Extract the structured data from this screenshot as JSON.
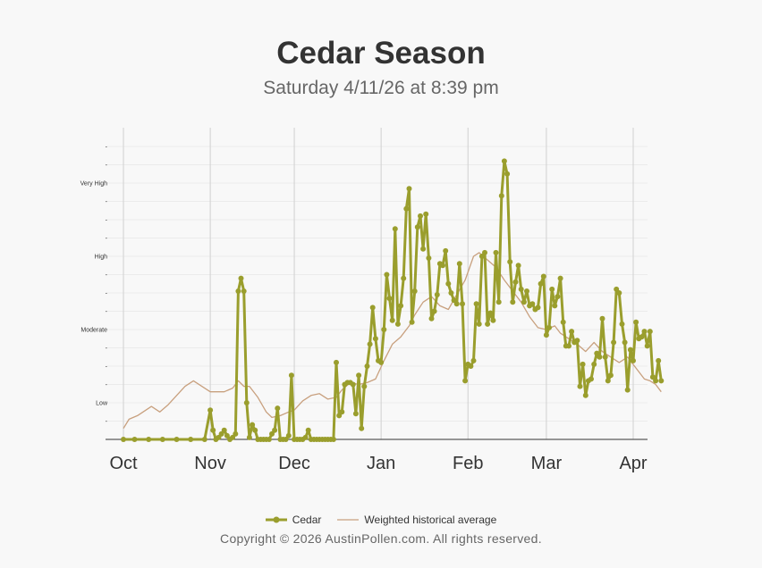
{
  "chart_data": {
    "type": "line",
    "title": "Cedar Season",
    "subtitle": "Saturday 4/11/26 at 8:39 pm",
    "x_range": [
      "2025-10-01",
      "2026-04-01"
    ],
    "x_ticks": [
      {
        "date": "2025-10-01",
        "label": "Oct"
      },
      {
        "date": "2025-11-01",
        "label": "Nov"
      },
      {
        "date": "2025-12-01",
        "label": "Dec"
      },
      {
        "date": "2026-01-01",
        "label": "Jan"
      },
      {
        "date": "2026-02-01",
        "label": "Feb"
      },
      {
        "date": "2026-03-01",
        "label": "Mar"
      },
      {
        "date": "2026-04-01",
        "label": "Apr"
      }
    ],
    "ylim": [
      0,
      16
    ],
    "y_ticks": [
      {
        "value": 1,
        "label": "-"
      },
      {
        "value": 2,
        "label": "Low"
      },
      {
        "value": 3,
        "label": "-"
      },
      {
        "value": 4,
        "label": "-"
      },
      {
        "value": 5,
        "label": "-"
      },
      {
        "value": 6,
        "label": "Moderate"
      },
      {
        "value": 7,
        "label": "-"
      },
      {
        "value": 8,
        "label": "-"
      },
      {
        "value": 9,
        "label": "-"
      },
      {
        "value": 10,
        "label": "High"
      },
      {
        "value": 11,
        "label": "-"
      },
      {
        "value": 12,
        "label": "-"
      },
      {
        "value": 13,
        "label": "-"
      },
      {
        "value": 14,
        "label": "Very High"
      },
      {
        "value": 15,
        "label": "-"
      },
      {
        "value": 16,
        "label": "-"
      }
    ],
    "grid": true,
    "legend_position": "bottom",
    "series": [
      {
        "name": "Cedar",
        "color": "#9a9e2d",
        "points": [
          [
            "2025-10-01",
            0
          ],
          [
            "2025-10-05",
            0
          ],
          [
            "2025-10-10",
            0
          ],
          [
            "2025-10-15",
            0
          ],
          [
            "2025-10-20",
            0
          ],
          [
            "2025-10-25",
            0
          ],
          [
            "2025-10-30",
            0
          ],
          [
            "2025-11-01",
            1.6
          ],
          [
            "2025-11-02",
            0.5
          ],
          [
            "2025-11-03",
            0
          ],
          [
            "2025-11-04",
            0.1
          ],
          [
            "2025-11-05",
            0.3
          ],
          [
            "2025-11-06",
            0.5
          ],
          [
            "2025-11-07",
            0.2
          ],
          [
            "2025-11-08",
            0
          ],
          [
            "2025-11-09",
            0.1
          ],
          [
            "2025-11-10",
            0.3
          ],
          [
            "2025-11-11",
            8.1
          ],
          [
            "2025-11-12",
            8.8
          ],
          [
            "2025-11-13",
            8.1
          ],
          [
            "2025-11-14",
            2
          ],
          [
            "2025-11-15",
            0.1
          ],
          [
            "2025-11-16",
            0.8
          ],
          [
            "2025-11-17",
            0.5
          ],
          [
            "2025-11-18",
            0
          ],
          [
            "2025-11-19",
            0
          ],
          [
            "2025-11-20",
            0
          ],
          [
            "2025-11-21",
            0
          ],
          [
            "2025-11-22",
            0
          ],
          [
            "2025-11-23",
            0.3
          ],
          [
            "2025-11-24",
            0.5
          ],
          [
            "2025-11-25",
            1.7
          ],
          [
            "2025-11-26",
            0
          ],
          [
            "2025-11-27",
            0
          ],
          [
            "2025-11-28",
            0
          ],
          [
            "2025-11-29",
            0.2
          ],
          [
            "2025-11-30",
            3.5
          ],
          [
            "2025-12-01",
            0
          ],
          [
            "2025-12-02",
            0
          ],
          [
            "2025-12-03",
            0
          ],
          [
            "2025-12-04",
            0
          ],
          [
            "2025-12-05",
            0.1
          ],
          [
            "2025-12-06",
            0.5
          ],
          [
            "2025-12-07",
            0
          ],
          [
            "2025-12-08",
            0
          ],
          [
            "2025-12-09",
            0
          ],
          [
            "2025-12-10",
            0
          ],
          [
            "2025-12-11",
            0
          ],
          [
            "2025-12-12",
            0
          ],
          [
            "2025-12-13",
            0
          ],
          [
            "2025-12-14",
            0
          ],
          [
            "2025-12-15",
            0
          ],
          [
            "2025-12-16",
            4.2
          ],
          [
            "2025-12-17",
            1.3
          ],
          [
            "2025-12-18",
            1.5
          ],
          [
            "2025-12-19",
            3
          ],
          [
            "2025-12-20",
            3.1
          ],
          [
            "2025-12-21",
            3.1
          ],
          [
            "2025-12-22",
            3
          ],
          [
            "2025-12-23",
            1.4
          ],
          [
            "2025-12-24",
            3.5
          ],
          [
            "2025-12-25",
            0.6
          ],
          [
            "2025-12-26",
            2.9
          ],
          [
            "2025-12-27",
            4
          ],
          [
            "2025-12-28",
            5.2
          ],
          [
            "2025-12-29",
            7.2
          ],
          [
            "2025-12-30",
            5.5
          ],
          [
            "2025-12-31",
            4.3
          ],
          [
            "2026-01-01",
            4.2
          ],
          [
            "2026-01-02",
            6
          ],
          [
            "2026-01-03",
            9
          ],
          [
            "2026-01-04",
            7.7
          ],
          [
            "2026-01-05",
            6.5
          ],
          [
            "2026-01-06",
            11.5
          ],
          [
            "2026-01-07",
            6.3
          ],
          [
            "2026-01-08",
            7.3
          ],
          [
            "2026-01-09",
            8.8
          ],
          [
            "2026-01-10",
            12.6
          ],
          [
            "2026-01-11",
            13.7
          ],
          [
            "2026-01-12",
            6.4
          ],
          [
            "2026-01-13",
            8.1
          ],
          [
            "2026-01-14",
            11.6
          ],
          [
            "2026-01-15",
            12.2
          ],
          [
            "2026-01-16",
            10.4
          ],
          [
            "2026-01-17",
            12.3
          ],
          [
            "2026-01-18",
            9.9
          ],
          [
            "2026-01-19",
            6.6
          ],
          [
            "2026-01-20",
            7
          ],
          [
            "2026-01-21",
            7.9
          ],
          [
            "2026-01-22",
            9.6
          ],
          [
            "2026-01-23",
            9.5
          ],
          [
            "2026-01-24",
            10.3
          ],
          [
            "2026-01-25",
            8.5
          ],
          [
            "2026-01-26",
            8
          ],
          [
            "2026-01-27",
            7.6
          ],
          [
            "2026-01-28",
            7.4
          ],
          [
            "2026-01-29",
            9.6
          ],
          [
            "2026-01-30",
            7.4
          ],
          [
            "2026-01-31",
            3.2
          ],
          [
            "2026-02-01",
            4.1
          ],
          [
            "2026-02-02",
            4
          ],
          [
            "2026-02-03",
            4.3
          ],
          [
            "2026-02-04",
            7.4
          ],
          [
            "2026-02-05",
            6.3
          ],
          [
            "2026-02-06",
            10
          ],
          [
            "2026-02-07",
            10.2
          ],
          [
            "2026-02-08",
            6.3
          ],
          [
            "2026-02-09",
            6.9
          ],
          [
            "2026-02-10",
            6.5
          ],
          [
            "2026-02-11",
            10.2
          ],
          [
            "2026-02-12",
            7.5
          ],
          [
            "2026-02-13",
            13.3
          ],
          [
            "2026-02-14",
            15.2
          ],
          [
            "2026-02-15",
            14.5
          ],
          [
            "2026-02-16",
            9.7
          ],
          [
            "2026-02-17",
            7.5
          ],
          [
            "2026-02-18",
            8.6
          ],
          [
            "2026-02-19",
            9.5
          ],
          [
            "2026-02-20",
            8.2
          ],
          [
            "2026-02-21",
            7.5
          ],
          [
            "2026-02-22",
            8.1
          ],
          [
            "2026-02-23",
            7.3
          ],
          [
            "2026-02-24",
            7.4
          ],
          [
            "2026-02-25",
            7.1
          ],
          [
            "2026-02-26",
            7.2
          ],
          [
            "2026-02-27",
            8.5
          ],
          [
            "2026-02-28",
            8.9
          ],
          [
            "2026-03-01",
            5.7
          ],
          [
            "2026-03-02",
            6.1
          ],
          [
            "2026-03-03",
            8.2
          ],
          [
            "2026-03-04",
            7.3
          ],
          [
            "2026-03-05",
            7.8
          ],
          [
            "2026-03-06",
            8.8
          ],
          [
            "2026-03-07",
            6.4
          ],
          [
            "2026-03-08",
            5.1
          ],
          [
            "2026-03-09",
            5.1
          ],
          [
            "2026-03-10",
            5.9
          ],
          [
            "2026-03-11",
            5.3
          ],
          [
            "2026-03-12",
            5.4
          ],
          [
            "2026-03-13",
            2.9
          ],
          [
            "2026-03-14",
            4.1
          ],
          [
            "2026-03-15",
            2.4
          ],
          [
            "2026-03-16",
            3.2
          ],
          [
            "2026-03-17",
            3.3
          ],
          [
            "2026-03-18",
            4.1
          ],
          [
            "2026-03-19",
            4.7
          ],
          [
            "2026-03-20",
            4.5
          ],
          [
            "2026-03-21",
            6.6
          ],
          [
            "2026-03-22",
            4.5
          ],
          [
            "2026-03-23",
            3.2
          ],
          [
            "2026-03-24",
            3.5
          ],
          [
            "2026-03-25",
            5.3
          ],
          [
            "2026-03-26",
            8.2
          ],
          [
            "2026-03-27",
            8
          ],
          [
            "2026-03-28",
            6.3
          ],
          [
            "2026-03-29",
            5.3
          ],
          [
            "2026-03-30",
            2.7
          ],
          [
            "2026-03-31",
            4.9
          ],
          [
            "2026-04-01",
            4.3
          ],
          [
            "2026-04-02",
            6.4
          ],
          [
            "2026-04-03",
            5.5
          ],
          [
            "2026-04-04",
            5.6
          ],
          [
            "2026-04-05",
            5.9
          ],
          [
            "2026-04-06",
            5.1
          ],
          [
            "2026-04-07",
            5.9
          ],
          [
            "2026-04-08",
            3.4
          ],
          [
            "2026-04-09",
            3.2
          ],
          [
            "2026-04-10",
            4.3
          ],
          [
            "2026-04-11",
            3.2
          ]
        ]
      },
      {
        "name": "Weighted historical average",
        "color": "#c8a07e",
        "points": [
          [
            "2025-10-01",
            0.6
          ],
          [
            "2025-10-03",
            1.1
          ],
          [
            "2025-10-06",
            1.3
          ],
          [
            "2025-10-09",
            1.6
          ],
          [
            "2025-10-11",
            1.8
          ],
          [
            "2025-10-14",
            1.5
          ],
          [
            "2025-10-17",
            1.9
          ],
          [
            "2025-10-20",
            2.4
          ],
          [
            "2025-10-23",
            2.9
          ],
          [
            "2025-10-26",
            3.2
          ],
          [
            "2025-10-29",
            2.9
          ],
          [
            "2025-11-01",
            2.6
          ],
          [
            "2025-11-03",
            2.6
          ],
          [
            "2025-11-06",
            2.6
          ],
          [
            "2025-11-09",
            2.8
          ],
          [
            "2025-11-11",
            3.2
          ],
          [
            "2025-11-13",
            2.9
          ],
          [
            "2025-11-15",
            2.9
          ],
          [
            "2025-11-18",
            2.3
          ],
          [
            "2025-11-21",
            1.5
          ],
          [
            "2025-11-23",
            1.2
          ],
          [
            "2025-11-26",
            1.3
          ],
          [
            "2025-11-29",
            1.5
          ],
          [
            "2025-12-01",
            1.6
          ],
          [
            "2025-12-04",
            2.1
          ],
          [
            "2025-12-07",
            2.4
          ],
          [
            "2025-12-10",
            2.5
          ],
          [
            "2025-12-13",
            2.2
          ],
          [
            "2025-12-16",
            2.3
          ],
          [
            "2025-12-18",
            2.7
          ],
          [
            "2025-12-21",
            3.1
          ],
          [
            "2025-12-24",
            3
          ],
          [
            "2025-12-27",
            3.1
          ],
          [
            "2025-12-30",
            3.3
          ],
          [
            "2026-01-02",
            4.3
          ],
          [
            "2026-01-05",
            5.2
          ],
          [
            "2026-01-08",
            5.6
          ],
          [
            "2026-01-11",
            6.2
          ],
          [
            "2026-01-13",
            6.8
          ],
          [
            "2026-01-16",
            7.5
          ],
          [
            "2026-01-19",
            7.8
          ],
          [
            "2026-01-22",
            7.3
          ],
          [
            "2026-01-25",
            7.1
          ],
          [
            "2026-01-28",
            7.9
          ],
          [
            "2026-01-31",
            8.7
          ],
          [
            "2026-02-03",
            10
          ],
          [
            "2026-02-05",
            10.2
          ],
          [
            "2026-02-08",
            9.8
          ],
          [
            "2026-02-11",
            9.4
          ],
          [
            "2026-02-14",
            8.7
          ],
          [
            "2026-02-17",
            8.1
          ],
          [
            "2026-02-20",
            7.5
          ],
          [
            "2026-02-23",
            6.7
          ],
          [
            "2026-02-26",
            6.1
          ],
          [
            "2026-03-01",
            6
          ],
          [
            "2026-03-04",
            6.2
          ],
          [
            "2026-03-06",
            5.8
          ],
          [
            "2026-03-09",
            5.5
          ],
          [
            "2026-03-12",
            5.2
          ],
          [
            "2026-03-15",
            4.8
          ],
          [
            "2026-03-18",
            5.3
          ],
          [
            "2026-03-21",
            4.8
          ],
          [
            "2026-03-24",
            4.5
          ],
          [
            "2026-03-27",
            4.2
          ],
          [
            "2026-03-30",
            4.5
          ],
          [
            "2026-04-02",
            3.9
          ],
          [
            "2026-04-05",
            3.3
          ],
          [
            "2026-04-07",
            3.2
          ],
          [
            "2026-04-09",
            3
          ],
          [
            "2026-04-11",
            2.6
          ]
        ]
      }
    ],
    "copyright": "Copyright © 2026 AustinPollen.com.  All rights reserved."
  }
}
